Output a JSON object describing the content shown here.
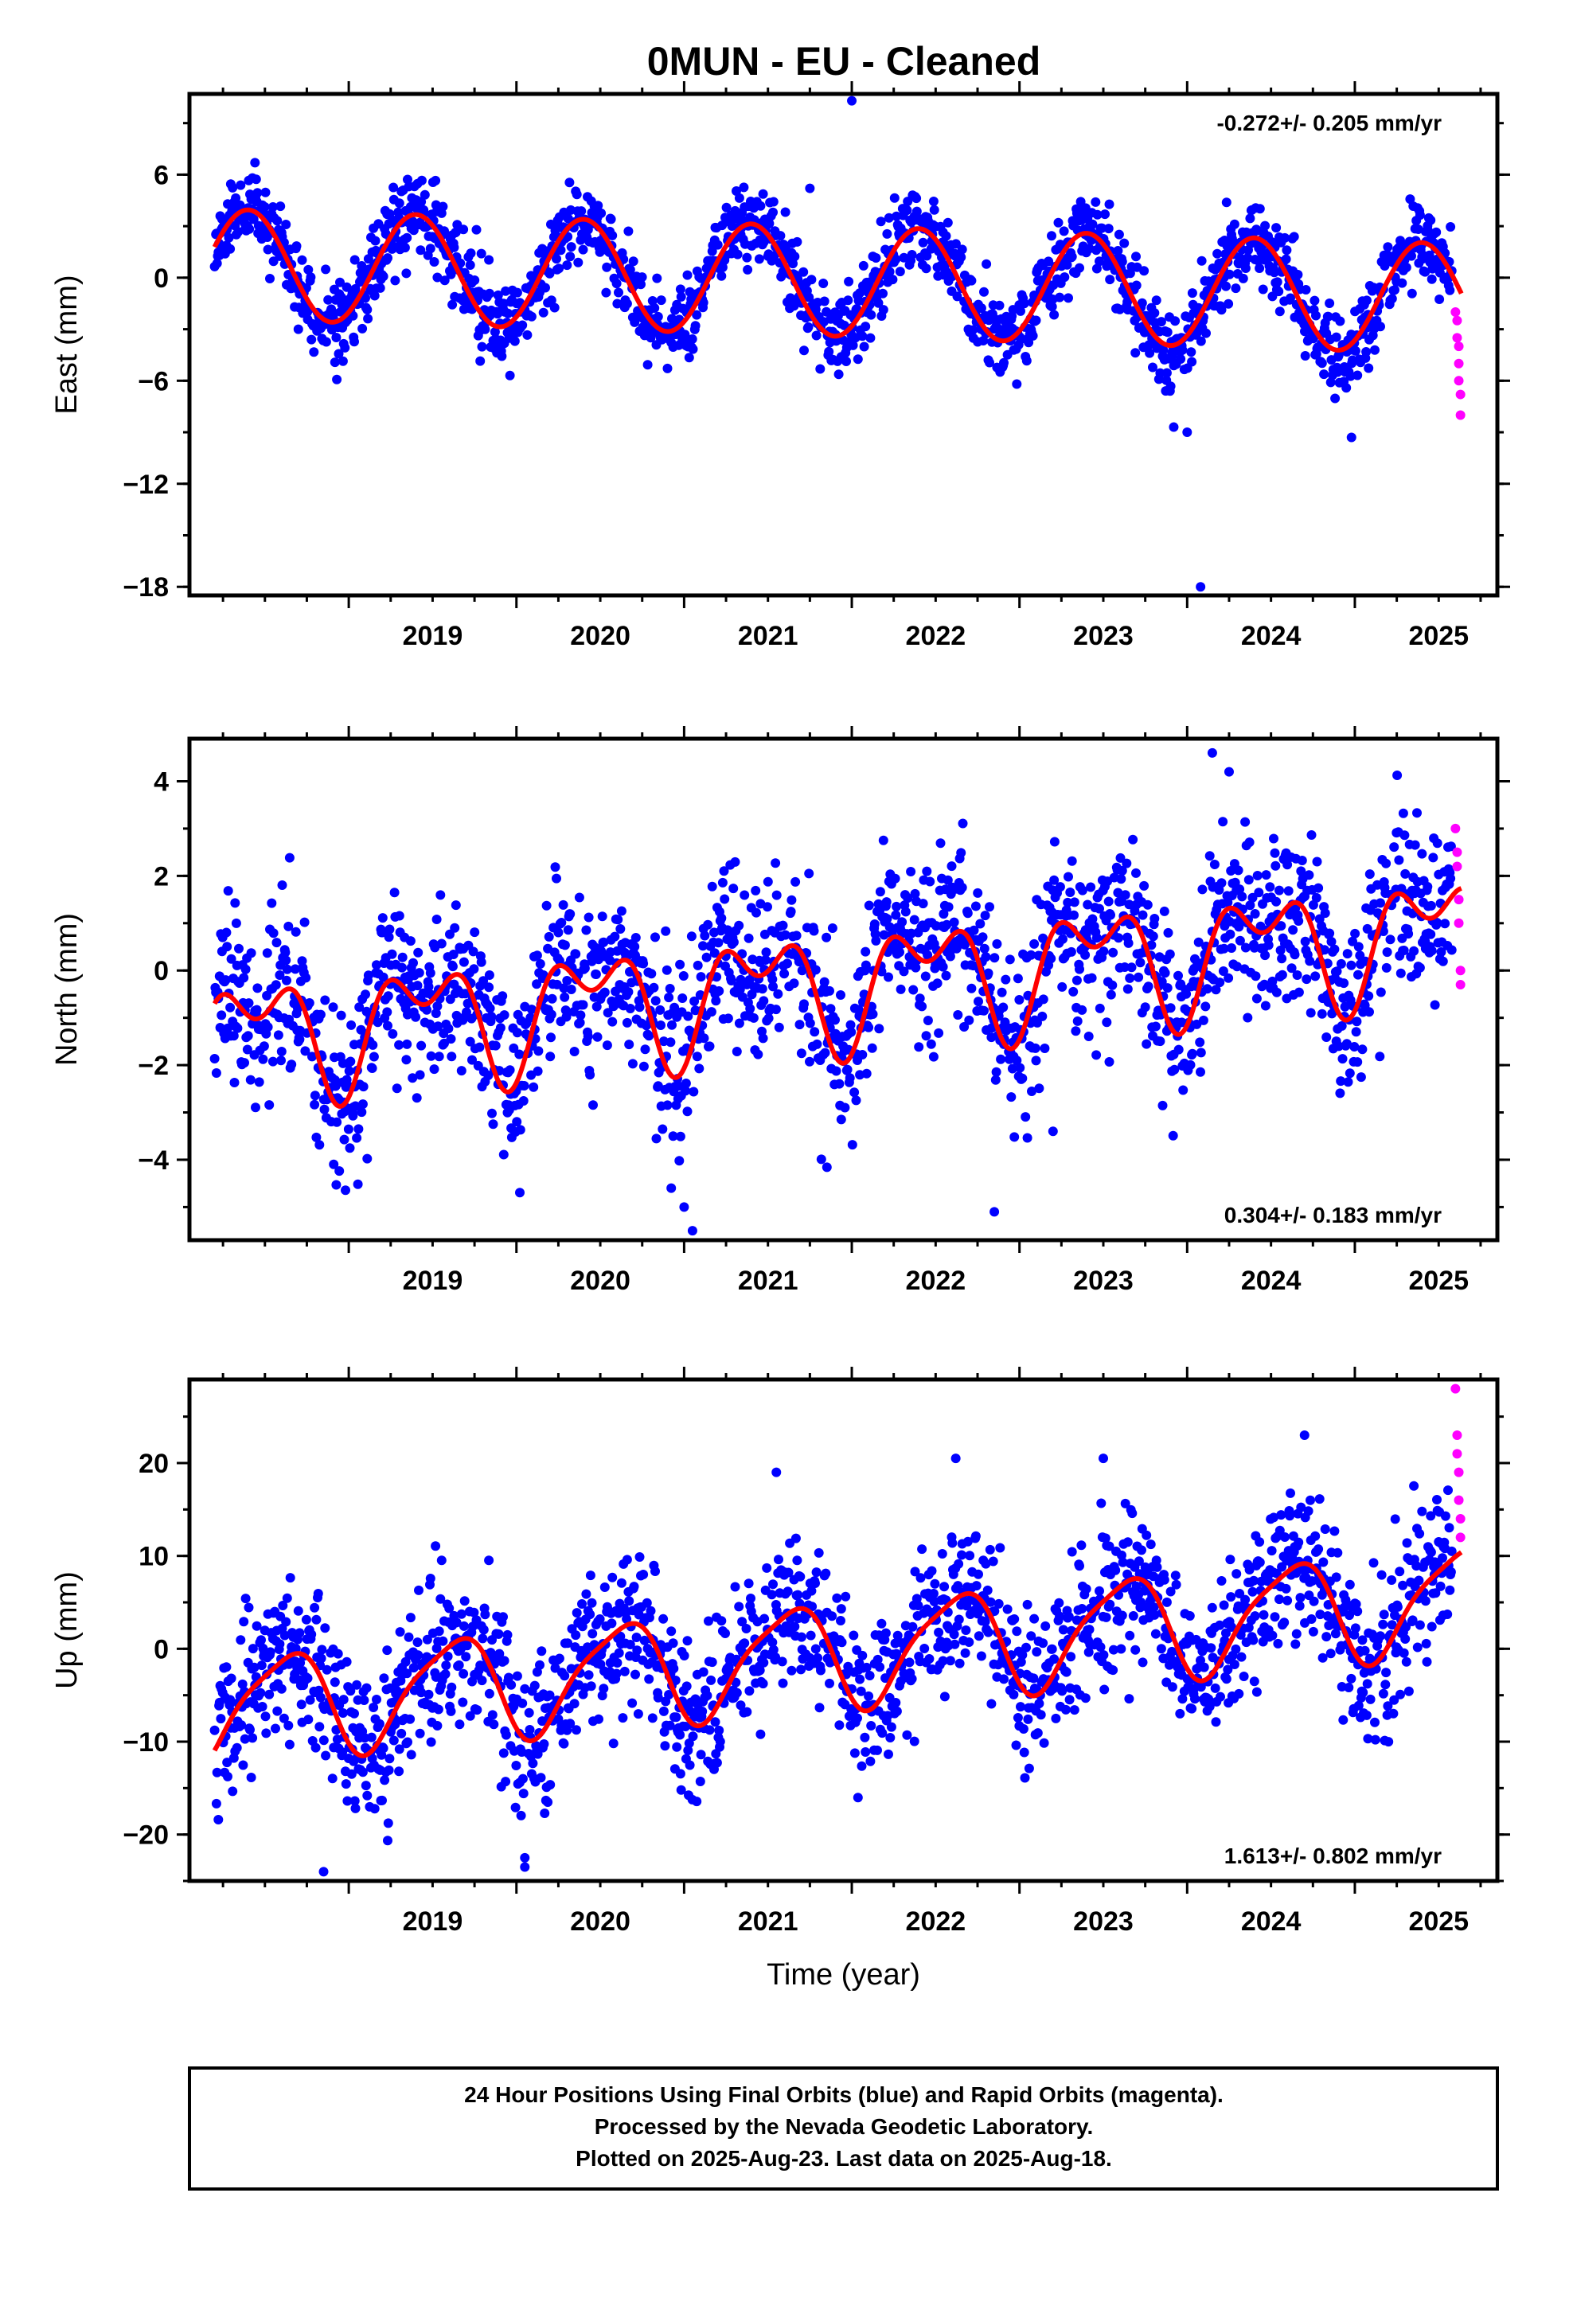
{
  "title": "0MUN  - EU - Cleaned",
  "caption": [
    "24 Hour Positions Using Final Orbits (blue) and Rapid Orbits (magenta).",
    "Processed by the Nevada Geodetic Laboratory.",
    "Plotted on 2025-Aug-23. Last data on 2025-Aug-18."
  ],
  "colors": {
    "final": "#0000ff",
    "rapid": "#ff00ff",
    "model": "#ff0000",
    "frame": "#000000"
  },
  "chart_data": [
    {
      "type": "scatter",
      "ylabel": "East (mm)",
      "xlabel": "",
      "rate_label": "-0.272+/- 0.205 mm/yr",
      "rate_position": "top-right",
      "xlim": [
        2018.05,
        2025.85
      ],
      "ylim": [
        -18.5,
        10.7
      ],
      "x_ticks": [
        "2019",
        "2020",
        "2021",
        "2022",
        "2023",
        "2024",
        "2025"
      ],
      "y_ticks": [
        "6",
        "0",
        "-6",
        "-12",
        "-18"
      ],
      "grid": false,
      "model": {
        "name": "",
        "mean": 0.8,
        "trend": -0.272,
        "t0": 2018.2,
        "annual_amp": 3.2,
        "annual_phase": 0.4,
        "semi_amp": 0.0,
        "semi_phase": 0.0
      },
      "scatter": {
        "sigma": 1.2,
        "seed": 11,
        "start": 2018.2,
        "end": 2025.58,
        "step": 0.0037
      },
      "outliers": [
        [
          2022.0,
          10.3
        ],
        [
          2024.08,
          -18.0
        ],
        [
          2024.0,
          -9.0
        ],
        [
          2023.92,
          -8.7
        ],
        [
          2021.75,
          5.2
        ],
        [
          2024.98,
          -9.3
        ]
      ],
      "rapid": {
        "x": [
          2025.6,
          2025.61,
          2025.61,
          2025.62,
          2025.62,
          2025.62,
          2025.63,
          2025.63
        ],
        "y": [
          -2.0,
          -2.5,
          -3.5,
          -4.0,
          -5.0,
          -6.0,
          -6.8,
          -8.0
        ]
      }
    },
    {
      "type": "scatter",
      "ylabel": "North (mm)",
      "xlabel": "",
      "rate_label": "0.304+/- 0.183 mm/yr",
      "rate_position": "bottom-right",
      "xlim": [
        2018.05,
        2025.85
      ],
      "ylim": [
        -5.7,
        4.9
      ],
      "x_ticks": [
        "2019",
        "2020",
        "2021",
        "2022",
        "2023",
        "2024",
        "2025"
      ],
      "y_ticks": [
        "4",
        "2",
        "0",
        "-2",
        "-4"
      ],
      "grid": false,
      "model": {
        "name": "",
        "mean": -1.4,
        "trend": 0.304,
        "t0": 2018.2,
        "annual_amp": 1.0,
        "annual_phase": 0.45,
        "semi_amp": 0.7,
        "semi_phase": 0.2
      },
      "scatter": {
        "sigma": 0.9,
        "seed": 23,
        "start": 2018.2,
        "end": 2025.58,
        "step": 0.0037
      },
      "outliers": [
        [
          2024.15,
          4.6
        ],
        [
          2022.85,
          -5.1
        ],
        [
          2021.05,
          -5.5
        ],
        [
          2024.25,
          4.2
        ],
        [
          2023.2,
          -3.4
        ],
        [
          2021.0,
          -5.0
        ]
      ],
      "rapid": {
        "x": [
          2025.6,
          2025.61,
          2025.61,
          2025.62,
          2025.62,
          2025.63,
          2025.63
        ],
        "y": [
          3.0,
          2.5,
          2.2,
          1.5,
          1.0,
          0.0,
          -0.3
        ]
      }
    },
    {
      "type": "scatter",
      "ylabel": "Up (mm)",
      "xlabel": "Time (year)",
      "rate_label": "1.613+/- 0.802 mm/yr",
      "rate_position": "bottom-right",
      "xlim": [
        2018.05,
        2025.85
      ],
      "ylim": [
        -25.0,
        29.0
      ],
      "x_ticks": [
        "2019",
        "2020",
        "2021",
        "2022",
        "2023",
        "2024",
        "2025"
      ],
      "y_ticks": [
        "20",
        "10",
        "0",
        "-10",
        "-20"
      ],
      "grid": false,
      "model": {
        "name": "",
        "mean": -6.5,
        "trend": 1.613,
        "t0": 2018.2,
        "annual_amp": 5.5,
        "annual_phase": 0.62,
        "semi_amp": 1.2,
        "semi_phase": 0.3
      },
      "scatter": {
        "sigma": 4.0,
        "seed": 37,
        "start": 2018.2,
        "end": 2025.58,
        "step": 0.0037
      },
      "outliers": [
        [
          2018.85,
          -24.0
        ],
        [
          2020.05,
          -23.5
        ],
        [
          2020.05,
          -22.5
        ],
        [
          2024.7,
          23.0
        ],
        [
          2023.5,
          20.5
        ],
        [
          2022.62,
          20.5
        ],
        [
          2021.55,
          19.0
        ]
      ],
      "rapid": {
        "x": [
          2025.6,
          2025.61,
          2025.61,
          2025.62,
          2025.62,
          2025.63,
          2025.63
        ],
        "y": [
          28.0,
          23.0,
          21.0,
          19.0,
          16.0,
          14.0,
          12.0
        ]
      }
    }
  ]
}
